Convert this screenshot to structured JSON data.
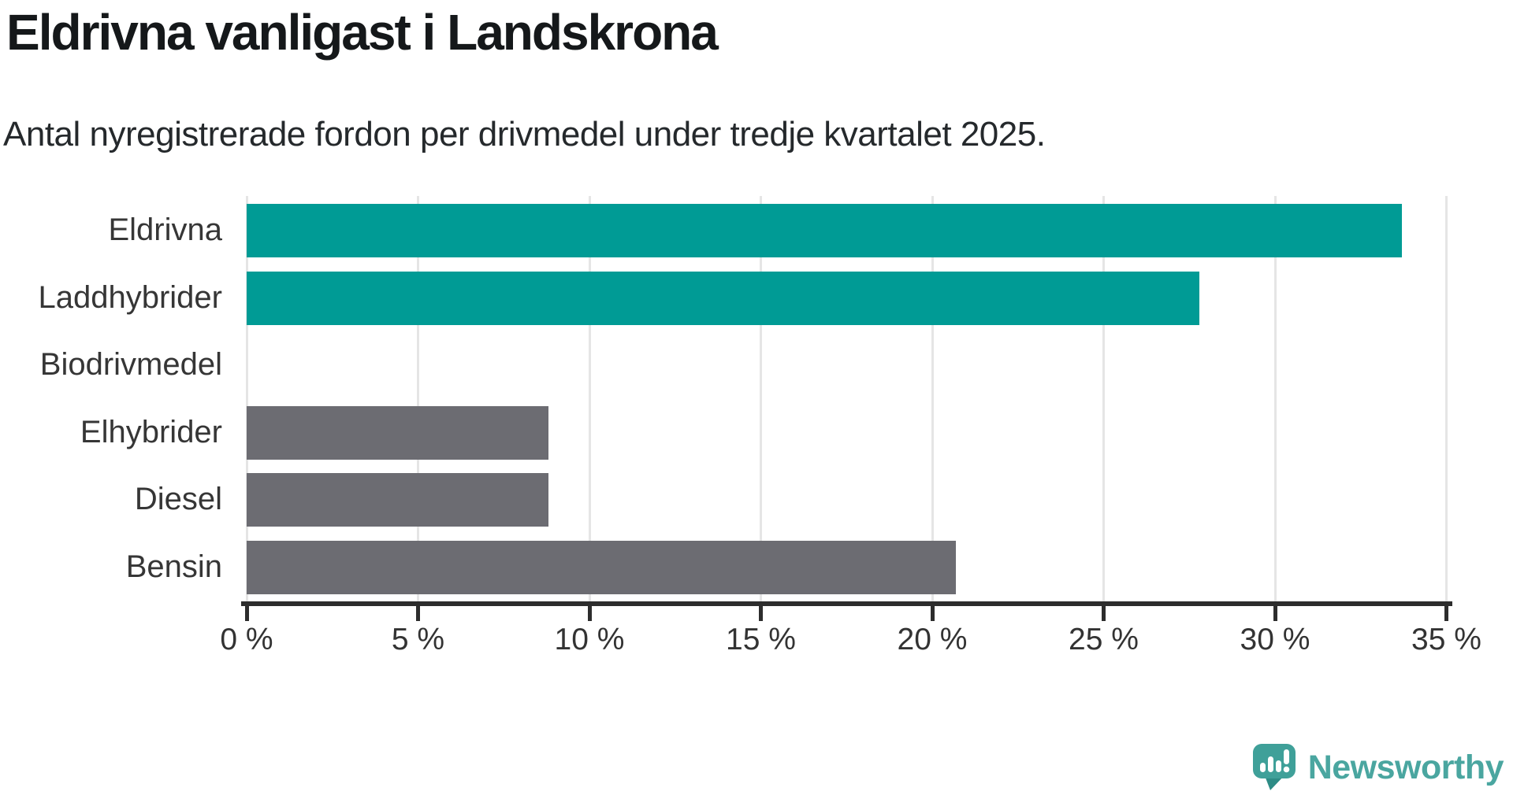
{
  "header": {
    "title": "Eldrivna vanligast i Landskrona",
    "subtitle": "Antal nyregistrerade fordon per drivmedel under tredje kvartalet 2025."
  },
  "chart_data": {
    "type": "bar",
    "orientation": "horizontal",
    "title": "Eldrivna vanligast i Landskrona",
    "subtitle": "Antal nyregistrerade fordon per drivmedel under tredje kvartalet 2025.",
    "categories": [
      "Eldrivna",
      "Laddhybrider",
      "Biodrivmedel",
      "Elhybrider",
      "Diesel",
      "Bensin"
    ],
    "values": [
      33.7,
      27.8,
      0,
      8.8,
      8.8,
      20.7
    ],
    "unit": "%",
    "bar_colors": [
      "#009B95",
      "#009B95",
      "#6C6C72",
      "#6C6C72",
      "#6C6C72",
      "#6C6C72"
    ],
    "highlight_color": "#009B95",
    "default_color": "#6C6C72",
    "xlabel": "",
    "ylabel": "",
    "xlim": [
      0,
      35
    ],
    "x_ticks": [
      0,
      5,
      10,
      15,
      20,
      25,
      30,
      35
    ],
    "x_tick_labels": [
      "0 %",
      "5 %",
      "10 %",
      "15 %",
      "20 %",
      "25 %",
      "30 %",
      "35 %"
    ],
    "grid": true,
    "grid_color": "#e5e5e5",
    "axis_color": "#2d2d2d",
    "label_color": "#363636",
    "legend": "none"
  },
  "footer": {
    "brand": "Newsworthy",
    "brand_color": "#4AA6A0",
    "icon_color": "#3FA099",
    "icon_shadow_color": "#2E8C86",
    "logo_icon": "newsworthy-speech-bubble-barchart-icon"
  }
}
